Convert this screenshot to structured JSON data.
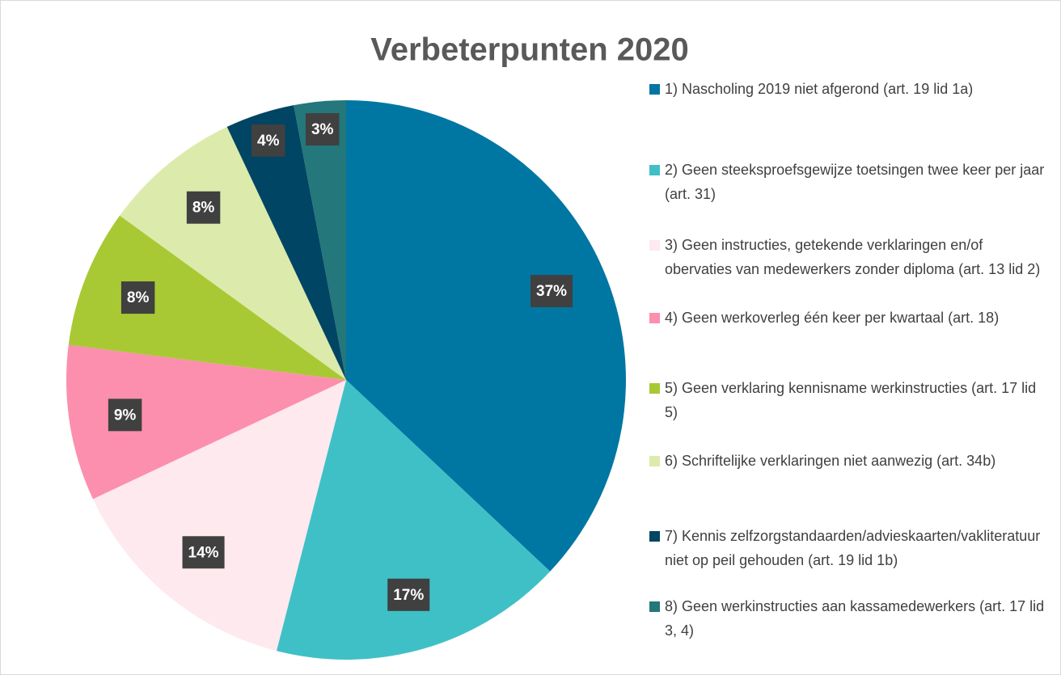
{
  "chart_data": {
    "type": "pie",
    "title": "Verbeterpunten 2020",
    "categories": [
      "1) Nascholing 2019 niet afgerond (art. 19 lid 1a)",
      "2) Geen steeksproefsgewijze toetsingen twee keer per jaar (art. 31)",
      "3) Geen instructies, getekende verklaringen en/of obervaties van medewerkers zonder diploma (art. 13 lid 2)",
      "4) Geen werkoverleg één keer per kwartaal (art. 18)",
      "5) Geen verklaring kennisname werkinstructies (art. 17 lid 5)",
      "6) Schriftelijke verklaringen niet aanwezig (art. 34b)",
      "7) Kennis zelfzorgstandaarden/advieskaarten/vakliteratuur niet op peil gehouden (art. 19 lid 1b)",
      "8) Geen werkinstructies aan kassamedewerkers (art. 17 lid 3, 4)"
    ],
    "values": [
      37,
      17,
      14,
      9,
      8,
      8,
      4,
      3
    ],
    "value_labels": [
      "37%",
      "17%",
      "14%",
      "9%",
      "8%",
      "8%",
      "4%",
      "3%"
    ],
    "colors": [
      "#0076a3",
      "#3fc0c6",
      "#fde9ee",
      "#fc8fae",
      "#a8c934",
      "#dcebab",
      "#004563",
      "#24777a"
    ],
    "legend": "right"
  }
}
